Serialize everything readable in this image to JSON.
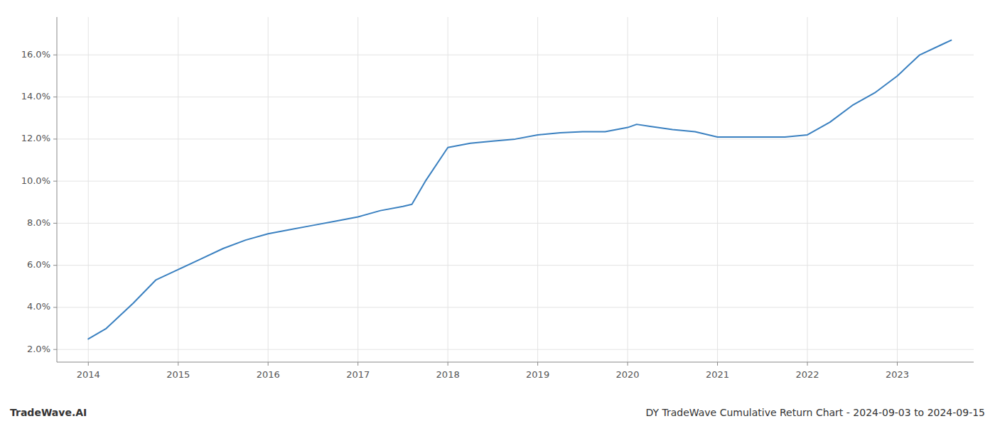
{
  "chart_data": {
    "type": "line",
    "annotations": [
      "TradeWave.AI",
      "DY TradeWave Cumulative Return Chart - 2024-09-03 to 2024-09-15"
    ],
    "x": [
      2014.0,
      2014.2,
      2014.5,
      2014.75,
      2015.0,
      2015.25,
      2015.5,
      2015.75,
      2016.0,
      2016.25,
      2016.5,
      2016.75,
      2017.0,
      2017.25,
      2017.5,
      2017.6,
      2017.75,
      2018.0,
      2018.25,
      2018.5,
      2018.75,
      2019.0,
      2019.25,
      2019.5,
      2019.75,
      2020.0,
      2020.1,
      2020.25,
      2020.5,
      2020.75,
      2021.0,
      2021.25,
      2021.5,
      2021.75,
      2022.0,
      2022.25,
      2022.5,
      2022.75,
      2023.0,
      2023.25,
      2023.5,
      2023.6
    ],
    "values": [
      0.025,
      0.03,
      0.042,
      0.053,
      0.058,
      0.063,
      0.068,
      0.072,
      0.075,
      0.077,
      0.079,
      0.081,
      0.083,
      0.086,
      0.088,
      0.089,
      0.1,
      0.116,
      0.118,
      0.119,
      0.12,
      0.122,
      0.123,
      0.1235,
      0.1235,
      0.1255,
      0.127,
      0.126,
      0.1245,
      0.1235,
      0.121,
      0.121,
      0.121,
      0.121,
      0.122,
      0.128,
      0.136,
      0.142,
      0.15,
      0.16,
      0.165,
      0.167
    ],
    "color": "#3a80c0",
    "xlim": [
      2013.65,
      2023.85
    ],
    "xticks": [
      2014,
      2015,
      2016,
      2017,
      2018,
      2019,
      2020,
      2021,
      2022,
      2023
    ],
    "ylim": [
      0.014,
      0.178
    ],
    "yticks": [
      {
        "value": 0.02,
        "label": "2.0%"
      },
      {
        "value": 0.04,
        "label": "4.0%"
      },
      {
        "value": 0.06,
        "label": "6.0%"
      },
      {
        "value": 0.08,
        "label": "8.0%"
      },
      {
        "value": 0.1,
        "label": "10.0%"
      },
      {
        "value": 0.12,
        "label": "12.0%"
      },
      {
        "value": 0.14,
        "label": "14.0%"
      },
      {
        "value": 0.16,
        "label": "16.0%"
      }
    ],
    "grid": true
  }
}
